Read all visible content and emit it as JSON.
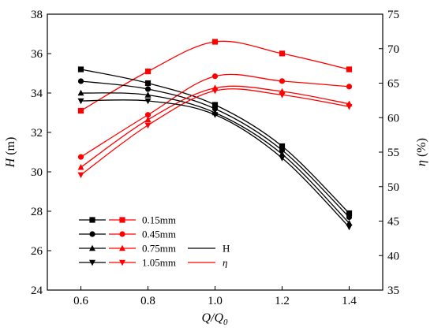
{
  "chart_data": {
    "type": "line",
    "title": "",
    "x": [
      0.6,
      0.8,
      1.0,
      1.2,
      1.4
    ],
    "xlim": [
      0.5,
      1.5
    ],
    "xticks": [
      "0.6",
      "0.8",
      "1.0",
      "1.2",
      "1.4"
    ],
    "xlabel": {
      "main": "Q/Q",
      "sub": "0"
    },
    "y_left": {
      "label": "H (m)",
      "label_italic": "H",
      "label_unit": " (m)",
      "lim": [
        24,
        38
      ],
      "ticks": [
        "24",
        "26",
        "28",
        "30",
        "32",
        "34",
        "36",
        "38"
      ]
    },
    "y_right": {
      "label": "η (%)",
      "label_italic": "η",
      "label_unit": " (%)",
      "lim": [
        35,
        75
      ],
      "ticks": [
        "35",
        "40",
        "45",
        "50",
        "55",
        "60",
        "65",
        "70",
        "75"
      ]
    },
    "colors": {
      "head": "#000000",
      "efficiency": "#ff0000"
    },
    "series": [
      {
        "name": "0.15mm",
        "marker": "square",
        "head": [
          35.2,
          34.5,
          33.4,
          31.3,
          27.9
        ],
        "efficiency": [
          61.0,
          66.7,
          71.0,
          69.3,
          67.0
        ]
      },
      {
        "name": "0.45mm",
        "marker": "circle",
        "head": [
          34.6,
          34.2,
          33.2,
          31.1,
          27.7
        ],
        "efficiency": [
          54.3,
          60.4,
          66.0,
          65.3,
          64.5
        ]
      },
      {
        "name": "0.75mm",
        "marker": "triangle-up",
        "head": [
          34.0,
          33.9,
          33.0,
          30.9,
          27.4
        ],
        "efficiency": [
          52.8,
          59.7,
          64.3,
          63.8,
          62.0
        ]
      },
      {
        "name": "1.05mm",
        "marker": "triangle-down",
        "head": [
          33.6,
          33.6,
          32.9,
          30.7,
          27.2
        ],
        "efficiency": [
          51.7,
          58.9,
          63.9,
          63.3,
          61.6
        ]
      }
    ],
    "legend": {
      "placement": "bottom-left",
      "type_entries": [
        {
          "label": "H",
          "color": "#000000",
          "italic": false
        },
        {
          "label": "η",
          "color": "#ff0000",
          "italic": true
        }
      ]
    },
    "grid": false
  }
}
